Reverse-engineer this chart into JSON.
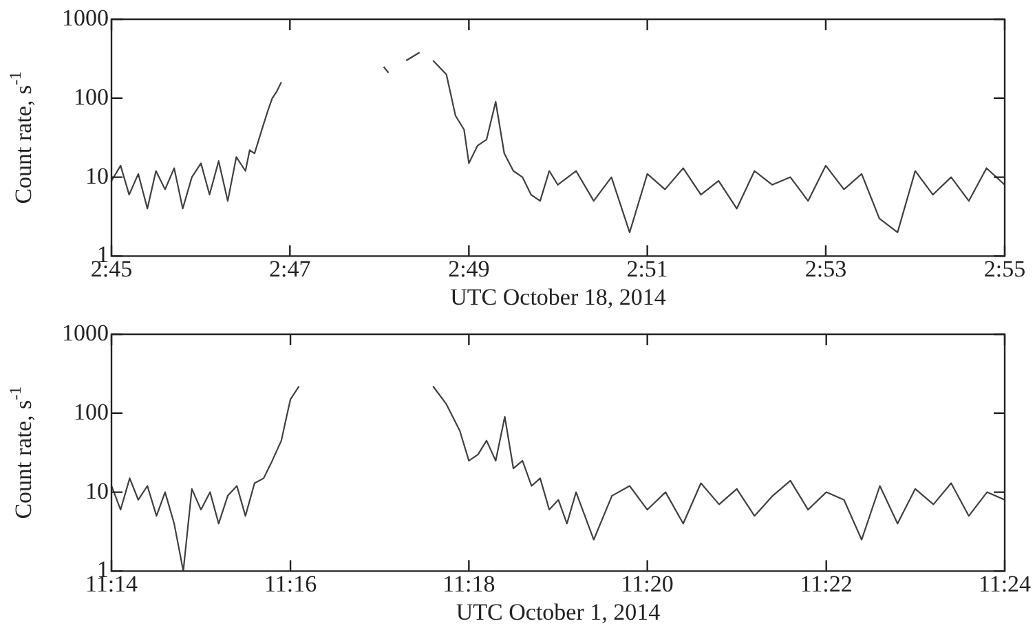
{
  "chart_data": [
    {
      "type": "line",
      "xlabel": "UTC October 18, 2014",
      "ylabel": "Count rate, s$^{-1}$",
      "log": "y",
      "marker": "none",
      "line_style": "solid",
      "xlim": [
        2.75,
        2.9167
      ],
      "xticks": [
        {
          "value": 2.75,
          "label": "2:45"
        },
        {
          "value": 2.7833,
          "label": "2:47"
        },
        {
          "value": 2.8167,
          "label": "2:49"
        },
        {
          "value": 2.85,
          "label": "2:51"
        },
        {
          "value": 2.8833,
          "label": "2:53"
        },
        {
          "value": 2.9167,
          "label": "2:55"
        }
      ],
      "ylim": [
        1,
        1000
      ],
      "yticks": [
        1,
        10,
        100,
        1000
      ],
      "series": [
        {
          "color": "#404040",
          "x": [
            2.75,
            2.7517,
            2.7533,
            2.755,
            2.7567,
            2.7583,
            2.76,
            2.7617,
            2.7633,
            2.765,
            2.7667,
            2.7683,
            2.77,
            2.7717,
            2.7733,
            2.775,
            2.7758,
            2.7767,
            2.7775,
            2.7783,
            2.7792,
            2.78,
            2.7808,
            2.7817,
            2.7833,
            2.8008,
            2.8017,
            2.803,
            2.805,
            2.8075,
            2.809,
            2.81,
            2.8125,
            2.8142,
            2.8158,
            2.8167,
            2.8183,
            2.82,
            2.8217,
            2.8233,
            2.825,
            2.8267,
            2.8283,
            2.83,
            2.8317,
            2.8333,
            2.8367,
            2.84,
            2.8433,
            2.8467,
            2.85,
            2.8533,
            2.8567,
            2.86,
            2.8633,
            2.8667,
            2.87,
            2.8733,
            2.8767,
            2.88,
            2.8833,
            2.8867,
            2.89,
            2.8933,
            2.8967,
            2.9,
            2.9033,
            2.9067,
            2.91,
            2.9133,
            2.9167
          ],
          "values": [
            9,
            14,
            6,
            11,
            4,
            12,
            7,
            13,
            4,
            10,
            15,
            6,
            16,
            5,
            18,
            12,
            22,
            20,
            30,
            45,
            70,
            100,
            120,
            160,
            null,
            250,
            210,
            null,
            300,
            380,
            null,
            300,
            200,
            60,
            40,
            15,
            25,
            30,
            90,
            20,
            12,
            10,
            6,
            5,
            12,
            8,
            12,
            5,
            10,
            2,
            11,
            7,
            13,
            6,
            9,
            4,
            12,
            8,
            10,
            5,
            14,
            7,
            11,
            3,
            2,
            12,
            6,
            10,
            5,
            13,
            8
          ]
        }
      ]
    },
    {
      "type": "line",
      "xlabel": "UTC October 1, 2014",
      "ylabel": "Count rate, s$^{-1}$",
      "log": "y",
      "marker": "none",
      "line_style": "solid",
      "xlim": [
        11.2333,
        11.4
      ],
      "xticks": [
        {
          "value": 11.2333,
          "label": "11:14"
        },
        {
          "value": 11.2667,
          "label": "11:16"
        },
        {
          "value": 11.3,
          "label": "11:18"
        },
        {
          "value": 11.3333,
          "label": "11:20"
        },
        {
          "value": 11.3667,
          "label": "11:22"
        },
        {
          "value": 11.4,
          "label": "11:24"
        }
      ],
      "ylim": [
        1,
        1000
      ],
      "yticks": [
        1,
        10,
        100,
        1000
      ],
      "series": [
        {
          "color": "#404040",
          "x": [
            11.2333,
            11.235,
            11.2367,
            11.2383,
            11.24,
            11.2417,
            11.2433,
            11.245,
            11.2467,
            11.2483,
            11.25,
            11.2517,
            11.2533,
            11.255,
            11.2567,
            11.2583,
            11.26,
            11.2617,
            11.2633,
            11.265,
            11.2658,
            11.2667,
            11.2683,
            11.27,
            11.2933,
            11.2958,
            11.2983,
            11.3,
            11.3017,
            11.3033,
            11.305,
            11.3067,
            11.3083,
            11.31,
            11.3117,
            11.3133,
            11.315,
            11.3167,
            11.3183,
            11.32,
            11.3233,
            11.3267,
            11.33,
            11.3333,
            11.3367,
            11.34,
            11.3433,
            11.3467,
            11.35,
            11.3533,
            11.3567,
            11.36,
            11.3633,
            11.3667,
            11.37,
            11.3733,
            11.3767,
            11.38,
            11.3833,
            11.3867,
            11.39,
            11.3933,
            11.3967,
            11.4
          ],
          "values": [
            12,
            6,
            15,
            8,
            12,
            5,
            10,
            4,
            1,
            11,
            6,
            10,
            4,
            9,
            12,
            5,
            13,
            15,
            25,
            45,
            80,
            150,
            220,
            null,
            220,
            130,
            60,
            25,
            30,
            45,
            25,
            90,
            20,
            25,
            12,
            15,
            6,
            8,
            4,
            10,
            2.5,
            9,
            12,
            6,
            10,
            4,
            13,
            7,
            11,
            5,
            9,
            14,
            6,
            10,
            8,
            2.5,
            12,
            4,
            11,
            7,
            13,
            5,
            10,
            8
          ]
        }
      ]
    }
  ]
}
